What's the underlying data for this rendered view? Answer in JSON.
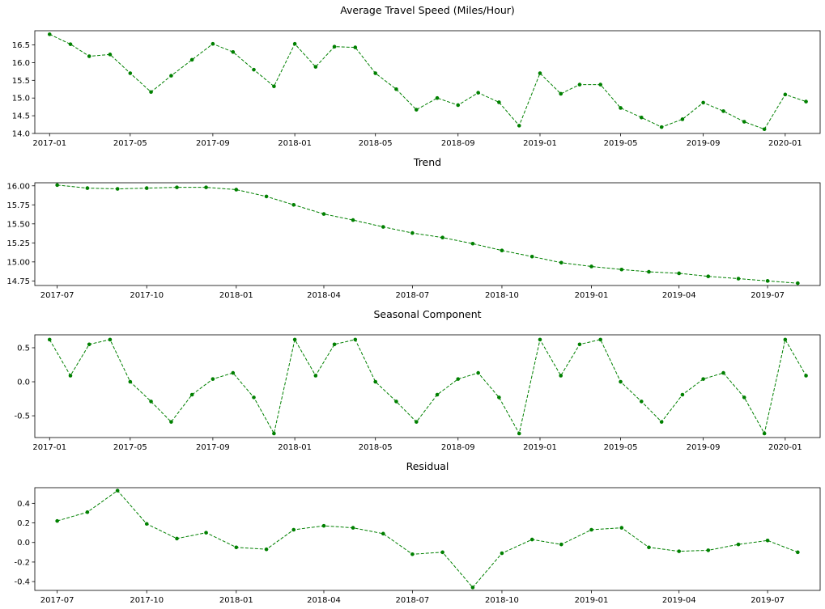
{
  "chart_data": [
    {
      "type": "line",
      "title": "Average Travel Speed (Miles/Hour)",
      "xlabel": "",
      "ylabel": "",
      "x": [
        "2017-01",
        "2017-02",
        "2017-03",
        "2017-04",
        "2017-05",
        "2017-06",
        "2017-07",
        "2017-08",
        "2017-09",
        "2017-10",
        "2017-11",
        "2017-12",
        "2018-01",
        "2018-02",
        "2018-03",
        "2018-04",
        "2018-05",
        "2018-06",
        "2018-07",
        "2018-08",
        "2018-09",
        "2018-10",
        "2018-11",
        "2018-12",
        "2019-01",
        "2019-02",
        "2019-03",
        "2019-04",
        "2019-05",
        "2019-06",
        "2019-07",
        "2019-08",
        "2019-09",
        "2019-10",
        "2019-11",
        "2019-12",
        "2020-01",
        "2020-02"
      ],
      "values": [
        16.8,
        16.52,
        16.18,
        16.23,
        15.7,
        15.17,
        15.63,
        16.08,
        16.53,
        16.3,
        15.8,
        15.33,
        16.53,
        15.88,
        16.45,
        16.43,
        15.7,
        15.25,
        14.67,
        15.0,
        14.8,
        15.15,
        14.88,
        14.22,
        15.7,
        15.12,
        15.38,
        15.38,
        14.72,
        14.45,
        14.18,
        14.4,
        14.87,
        14.63,
        14.33,
        14.12,
        15.1,
        14.9
      ],
      "ylim": [
        14.0,
        16.9
      ],
      "y_ticks": [
        14.0,
        14.5,
        15.0,
        15.5,
        16.0,
        16.5
      ],
      "y_tick_labels": [
        "14.0",
        "14.5",
        "15.0",
        "15.5",
        "16.0",
        "16.5"
      ],
      "x_ticks": [
        "2017-01",
        "2017-05",
        "2017-09",
        "2018-01",
        "2018-05",
        "2018-09",
        "2019-01",
        "2019-05",
        "2019-09",
        "2020-01"
      ],
      "x_tick_labels": [
        "2017-01",
        "2017-05",
        "2017-09",
        "2018-01",
        "2018-05",
        "2018-09",
        "2019-01",
        "2019-05",
        "2019-09",
        "2020-01"
      ],
      "x_range": [
        "2016-12-10",
        "2020-02-22"
      ],
      "style": {
        "color": "#008000",
        "line": "dashed",
        "marker": "dot"
      },
      "grid": false
    },
    {
      "type": "line",
      "title": "Trend",
      "xlabel": "",
      "ylabel": "",
      "x": [
        "2017-07",
        "2017-08",
        "2017-09",
        "2017-10",
        "2017-11",
        "2017-12",
        "2018-01",
        "2018-02",
        "2018-03",
        "2018-04",
        "2018-05",
        "2018-06",
        "2018-07",
        "2018-08",
        "2018-09",
        "2018-10",
        "2018-11",
        "2018-12",
        "2019-01",
        "2019-02",
        "2019-03",
        "2019-04",
        "2019-05",
        "2019-06",
        "2019-07",
        "2019-08"
      ],
      "values": [
        16.01,
        15.97,
        15.96,
        15.97,
        15.98,
        15.98,
        15.95,
        15.86,
        15.75,
        15.63,
        15.55,
        15.46,
        15.38,
        15.32,
        15.24,
        15.15,
        15.07,
        14.99,
        14.94,
        14.9,
        14.87,
        14.85,
        14.81,
        14.78,
        14.75,
        14.72
      ],
      "ylim": [
        14.69,
        16.04
      ],
      "y_ticks": [
        14.75,
        15.0,
        15.25,
        15.5,
        15.75,
        16.0
      ],
      "y_tick_labels": [
        "14.75",
        "15.00",
        "15.25",
        "15.50",
        "15.75",
        "16.00"
      ],
      "x_ticks": [
        "2017-07",
        "2017-10",
        "2018-01",
        "2018-04",
        "2018-07",
        "2018-10",
        "2019-01",
        "2019-04",
        "2019-07"
      ],
      "x_tick_labels": [
        "2017-07",
        "2017-10",
        "2018-01",
        "2018-04",
        "2018-07",
        "2018-10",
        "2019-01",
        "2019-04",
        "2019-07"
      ],
      "x_range": [
        "2017-06-08",
        "2019-08-24"
      ],
      "style": {
        "color": "#008000",
        "line": "dashed",
        "marker": "dot"
      },
      "grid": false
    },
    {
      "type": "line",
      "title": "Seasonal Component",
      "xlabel": "",
      "ylabel": "",
      "x": [
        "2017-01",
        "2017-02",
        "2017-03",
        "2017-04",
        "2017-05",
        "2017-06",
        "2017-07",
        "2017-08",
        "2017-09",
        "2017-10",
        "2017-11",
        "2017-12",
        "2018-01",
        "2018-02",
        "2018-03",
        "2018-04",
        "2018-05",
        "2018-06",
        "2018-07",
        "2018-08",
        "2018-09",
        "2018-10",
        "2018-11",
        "2018-12",
        "2019-01",
        "2019-02",
        "2019-03",
        "2019-04",
        "2019-05",
        "2019-06",
        "2019-07",
        "2019-08",
        "2019-09",
        "2019-10",
        "2019-11",
        "2019-12",
        "2020-01",
        "2020-02"
      ],
      "values": [
        0.62,
        0.09,
        0.55,
        0.62,
        0.0,
        -0.29,
        -0.59,
        -0.19,
        0.04,
        0.13,
        -0.23,
        -0.76,
        0.62,
        0.09,
        0.55,
        0.62,
        0.0,
        -0.29,
        -0.59,
        -0.19,
        0.04,
        0.13,
        -0.23,
        -0.76,
        0.62,
        0.09,
        0.55,
        0.62,
        0.0,
        -0.29,
        -0.59,
        -0.19,
        0.04,
        0.13,
        -0.23,
        -0.76,
        0.62,
        0.09
      ],
      "ylim": [
        -0.82,
        0.69
      ],
      "y_ticks": [
        -0.5,
        0.0,
        0.5
      ],
      "y_tick_labels": [
        "-0.5",
        "0.0",
        "0.5"
      ],
      "x_ticks": [
        "2017-01",
        "2017-05",
        "2017-09",
        "2018-01",
        "2018-05",
        "2018-09",
        "2019-01",
        "2019-05",
        "2019-09",
        "2020-01"
      ],
      "x_tick_labels": [
        "2017-01",
        "2017-05",
        "2017-09",
        "2018-01",
        "2018-05",
        "2018-09",
        "2019-01",
        "2019-05",
        "2019-09",
        "2020-01"
      ],
      "x_range": [
        "2016-12-10",
        "2020-02-22"
      ],
      "style": {
        "color": "#008000",
        "line": "dashed",
        "marker": "dot"
      },
      "grid": false
    },
    {
      "type": "line",
      "title": "Residual",
      "xlabel": "",
      "ylabel": "",
      "x": [
        "2017-07",
        "2017-08",
        "2017-09",
        "2017-10",
        "2017-11",
        "2017-12",
        "2018-01",
        "2018-02",
        "2018-03",
        "2018-04",
        "2018-05",
        "2018-06",
        "2018-07",
        "2018-08",
        "2018-09",
        "2018-10",
        "2018-11",
        "2018-12",
        "2019-01",
        "2019-02",
        "2019-03",
        "2019-04",
        "2019-05",
        "2019-06",
        "2019-07",
        "2019-08"
      ],
      "values": [
        0.22,
        0.31,
        0.53,
        0.19,
        0.04,
        0.1,
        -0.05,
        -0.07,
        0.13,
        0.17,
        0.15,
        0.09,
        -0.12,
        -0.1,
        -0.46,
        -0.11,
        0.03,
        -0.02,
        0.13,
        0.15,
        -0.05,
        -0.09,
        -0.08,
        -0.02,
        0.02,
        -0.1
      ],
      "ylim": [
        -0.49,
        0.56
      ],
      "y_ticks": [
        -0.4,
        -0.2,
        0.0,
        0.2,
        0.4
      ],
      "y_tick_labels": [
        "-0.4",
        "-0.2",
        "0.0",
        "0.2",
        "0.4"
      ],
      "x_ticks": [
        "2017-07",
        "2017-10",
        "2018-01",
        "2018-04",
        "2018-07",
        "2018-10",
        "2019-01",
        "2019-04",
        "2019-07"
      ],
      "x_tick_labels": [
        "2017-07",
        "2017-10",
        "2018-01",
        "2018-04",
        "2018-07",
        "2018-10",
        "2019-01",
        "2019-04",
        "2019-07"
      ],
      "x_range": [
        "2017-06-08",
        "2019-08-24"
      ],
      "style": {
        "color": "#008000",
        "line": "dashed",
        "marker": "dot"
      },
      "grid": false
    }
  ]
}
